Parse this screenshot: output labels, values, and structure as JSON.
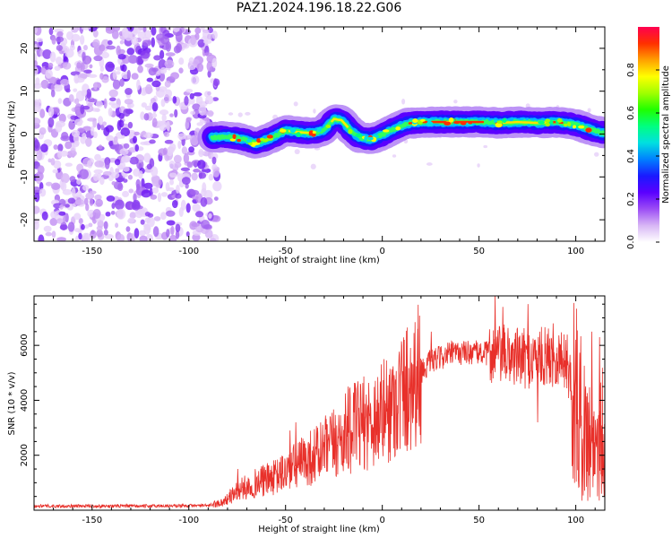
{
  "chart_data": [
    {
      "type": "heatmap",
      "title": "PAZ1.2024.196.18.22.G06",
      "xlabel": "Height of straight line (km)",
      "ylabel": "Frequency (Hz)",
      "xlim": [
        -180,
        115
      ],
      "ylim": [
        -25,
        25
      ],
      "xticks": [
        -150,
        -100,
        -50,
        0,
        50,
        100
      ],
      "yticks": [
        -20,
        -10,
        0,
        10,
        20
      ],
      "noise_region_x": [
        -180,
        -88
      ],
      "ridge": [
        {
          "x": -88,
          "y": -0.8
        },
        {
          "x": -80,
          "y": -0.6
        },
        {
          "x": -72,
          "y": -1.2
        },
        {
          "x": -65,
          "y": -2.2
        },
        {
          "x": -58,
          "y": -1.0
        },
        {
          "x": -50,
          "y": 0.8
        },
        {
          "x": -42,
          "y": 0.4
        },
        {
          "x": -35,
          "y": 0.2
        },
        {
          "x": -30,
          "y": 1.0
        },
        {
          "x": -25,
          "y": 3.5
        },
        {
          "x": -21,
          "y": 3.2
        },
        {
          "x": -17,
          "y": 1.2
        },
        {
          "x": -12,
          "y": -0.8
        },
        {
          "x": -6,
          "y": -1.2
        },
        {
          "x": 0,
          "y": -0.2
        },
        {
          "x": 6,
          "y": 1.2
        },
        {
          "x": 12,
          "y": 2.4
        },
        {
          "x": 20,
          "y": 2.8
        },
        {
          "x": 40,
          "y": 2.8
        },
        {
          "x": 52,
          "y": 2.8
        },
        {
          "x": 60,
          "y": 2.6
        },
        {
          "x": 70,
          "y": 2.8
        },
        {
          "x": 80,
          "y": 2.6
        },
        {
          "x": 90,
          "y": 2.8
        },
        {
          "x": 100,
          "y": 2.2
        },
        {
          "x": 108,
          "y": 1.0
        },
        {
          "x": 115,
          "y": 0.2
        }
      ],
      "colorbar": {
        "label": "Normalized spectral amplitude",
        "range": [
          0,
          1
        ],
        "ticks": [
          0.0,
          0.2,
          0.4,
          0.6,
          0.8
        ],
        "colors": [
          "#ffffff",
          "#d8b6f5",
          "#9c4df5",
          "#5a00ff",
          "#1a1aff",
          "#0080ff",
          "#00e0e0",
          "#00ff80",
          "#20ff00",
          "#a0ff00",
          "#ffff00",
          "#ffa000",
          "#ff3000",
          "#ff0050"
        ]
      }
    },
    {
      "type": "line",
      "xlabel": "Height of straight line (km)",
      "ylabel": "SNR (10 * v/v)",
      "xlim": [
        -180,
        115
      ],
      "ylim": [
        0,
        7800
      ],
      "xticks": [
        -150,
        -100,
        -50,
        0,
        50,
        100
      ],
      "yticks": [
        2000,
        4000,
        6000
      ],
      "color": "#e8302a",
      "envelope": [
        {
          "x": -180,
          "y": 150
        },
        {
          "x": -150,
          "y": 150
        },
        {
          "x": -120,
          "y": 150
        },
        {
          "x": -90,
          "y": 170
        },
        {
          "x": -82,
          "y": 300
        },
        {
          "x": -75,
          "y": 700
        },
        {
          "x": -65,
          "y": 1000
        },
        {
          "x": -55,
          "y": 1200
        },
        {
          "x": -45,
          "y": 1600
        },
        {
          "x": -35,
          "y": 2000
        },
        {
          "x": -25,
          "y": 2400
        },
        {
          "x": -15,
          "y": 3000
        },
        {
          "x": -5,
          "y": 3300
        },
        {
          "x": 5,
          "y": 3800
        },
        {
          "x": 15,
          "y": 4700
        },
        {
          "x": 25,
          "y": 5400
        },
        {
          "x": 35,
          "y": 5700
        },
        {
          "x": 45,
          "y": 5750
        },
        {
          "x": 55,
          "y": 5700
        },
        {
          "x": 65,
          "y": 5650
        },
        {
          "x": 75,
          "y": 5500
        },
        {
          "x": 85,
          "y": 5600
        },
        {
          "x": 95,
          "y": 5500
        },
        {
          "x": 100,
          "y": 4000
        },
        {
          "x": 105,
          "y": 2800
        },
        {
          "x": 110,
          "y": 2400
        },
        {
          "x": 115,
          "y": 3200
        }
      ],
      "spikes": [
        {
          "x": -75,
          "y": 1500
        },
        {
          "x": -62,
          "y": 1600
        },
        {
          "x": -48,
          "y": 2900
        },
        {
          "x": -45,
          "y": 3200
        },
        {
          "x": -18,
          "y": 4500
        },
        {
          "x": 18,
          "y": 6600
        },
        {
          "x": 25,
          "y": 6500
        },
        {
          "x": 58,
          "y": 7800
        },
        {
          "x": 62,
          "y": 7400
        },
        {
          "x": 75,
          "y": 7500
        },
        {
          "x": 80,
          "y": 3200
        },
        {
          "x": 88,
          "y": 6800
        },
        {
          "x": 108,
          "y": 6500
        },
        {
          "x": 112,
          "y": 6300
        },
        {
          "x": 113,
          "y": 600
        }
      ]
    }
  ]
}
